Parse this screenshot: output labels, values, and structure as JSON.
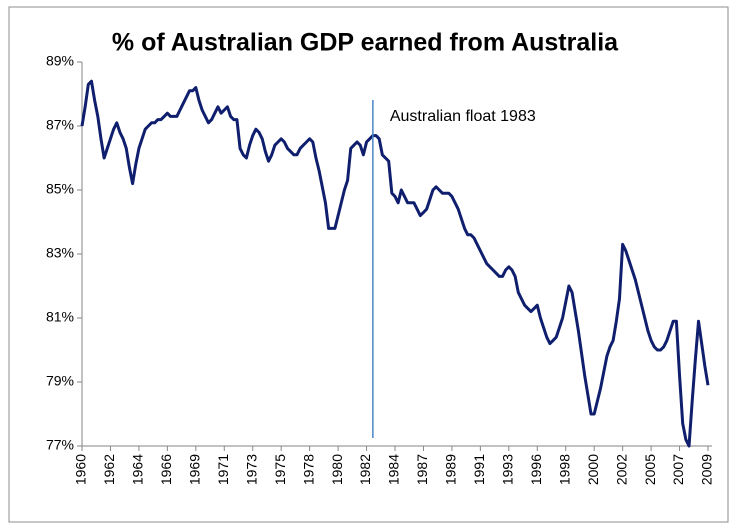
{
  "chart_data": {
    "type": "line",
    "title": "% of Australian GDP earned from Australia",
    "categories": [
      "1960",
      null,
      null,
      null,
      null,
      null,
      null,
      null,
      null,
      "1962",
      null,
      null,
      null,
      null,
      null,
      null,
      null,
      null,
      "1964",
      null,
      null,
      null,
      null,
      null,
      null,
      null,
      null,
      "1966",
      null,
      null,
      null,
      null,
      null,
      null,
      null,
      null,
      "1969",
      null,
      null,
      null,
      null,
      null,
      null,
      null,
      null,
      "1971",
      null,
      null,
      null,
      null,
      null,
      null,
      null,
      null,
      "1973",
      null,
      null,
      null,
      null,
      null,
      null,
      null,
      null,
      "1975",
      null,
      null,
      null,
      null,
      null,
      null,
      null,
      null,
      "1978",
      null,
      null,
      null,
      null,
      null,
      null,
      null,
      null,
      "1980",
      null,
      null,
      null,
      null,
      null,
      null,
      null,
      null,
      "1982",
      null,
      null,
      null,
      null,
      null,
      null,
      null,
      null,
      "1984",
      null,
      null,
      null,
      null,
      null,
      null,
      null,
      null,
      "1987",
      null,
      null,
      null,
      null,
      null,
      null,
      null,
      null,
      "1989",
      null,
      null,
      null,
      null,
      null,
      null,
      null,
      null,
      "1991",
      null,
      null,
      null,
      null,
      null,
      null,
      null,
      null,
      "1993",
      null,
      null,
      null,
      null,
      null,
      null,
      null,
      null,
      "1996",
      null,
      null,
      null,
      null,
      null,
      null,
      null,
      null,
      "1998",
      null,
      null,
      null,
      null,
      null,
      null,
      null,
      null,
      "2000",
      null,
      null,
      null,
      null,
      null,
      null,
      null,
      null,
      "2002",
      null,
      null,
      null,
      null,
      null,
      null,
      null,
      null,
      "2005",
      null,
      null,
      null,
      null,
      null,
      null,
      null,
      null,
      "2007",
      null,
      null,
      null,
      null,
      null,
      null,
      null,
      null,
      "2009"
    ],
    "series": [
      {
        "color": "#0f1f6e",
        "values": [
          87.0,
          87.6,
          88.3,
          88.4,
          87.8,
          87.3,
          86.6,
          86.0,
          86.3,
          86.6,
          86.9,
          87.1,
          86.8,
          86.6,
          86.3,
          85.7,
          85.2,
          85.8,
          86.3,
          86.6,
          86.9,
          87.0,
          87.1,
          87.1,
          87.2,
          87.2,
          87.3,
          87.4,
          87.3,
          87.3,
          87.3,
          87.5,
          87.7,
          87.9,
          88.1,
          88.1,
          88.2,
          87.8,
          87.5,
          87.3,
          87.1,
          87.2,
          87.4,
          87.6,
          87.4,
          87.5,
          87.6,
          87.3,
          87.2,
          87.2,
          86.3,
          86.1,
          86.0,
          86.4,
          86.7,
          86.9,
          86.8,
          86.6,
          86.2,
          85.9,
          86.1,
          86.4,
          86.5,
          86.6,
          86.5,
          86.3,
          86.2,
          86.1,
          86.1,
          86.3,
          86.4,
          86.5,
          86.6,
          86.5,
          86.0,
          85.6,
          85.1,
          84.6,
          83.8,
          83.8,
          83.8,
          84.2,
          84.6,
          85.0,
          85.3,
          86.3,
          86.4,
          86.5,
          86.4,
          86.1,
          86.5,
          86.6,
          86.7,
          86.7,
          86.6,
          86.1,
          86.0,
          85.9,
          84.9,
          84.8,
          84.6,
          85.0,
          84.8,
          84.6,
          84.6,
          84.6,
          84.4,
          84.2,
          84.3,
          84.4,
          84.7,
          85.0,
          85.1,
          85.0,
          84.9,
          84.9,
          84.9,
          84.8,
          84.6,
          84.4,
          84.1,
          83.8,
          83.6,
          83.6,
          83.5,
          83.3,
          83.1,
          82.9,
          82.7,
          82.6,
          82.5,
          82.4,
          82.3,
          82.3,
          82.5,
          82.6,
          82.5,
          82.3,
          81.8,
          81.6,
          81.4,
          81.3,
          81.2,
          81.3,
          81.4,
          81.0,
          80.7,
          80.4,
          80.2,
          80.3,
          80.4,
          80.7,
          81.0,
          81.5,
          82.0,
          81.8,
          81.2,
          80.6,
          79.9,
          79.2,
          78.6,
          78.0,
          78.0,
          78.4,
          78.8,
          79.3,
          79.8,
          80.1,
          80.3,
          80.9,
          81.6,
          83.3,
          83.1,
          82.8,
          82.5,
          82.2,
          81.8,
          81.4,
          81.0,
          80.6,
          80.3,
          80.1,
          80.0,
          80.0,
          80.1,
          80.3,
          80.6,
          80.9,
          80.9,
          79.2,
          77.7,
          77.2,
          77.0,
          78.4,
          79.7,
          80.9,
          80.2,
          79.5,
          78.9
        ]
      }
    ],
    "ylim": [
      77,
      89
    ],
    "yticks": [
      {
        "value": 77,
        "label": "77%"
      },
      {
        "value": 79,
        "label": "79%"
      },
      {
        "value": 81,
        "label": "81%"
      },
      {
        "value": 83,
        "label": "83%"
      },
      {
        "value": 85,
        "label": "85%"
      },
      {
        "value": 87,
        "label": "87%"
      },
      {
        "value": 89,
        "label": "89%"
      }
    ],
    "grid": false,
    "annotation": {
      "label": "Australian float 1983",
      "at": 92
    }
  }
}
